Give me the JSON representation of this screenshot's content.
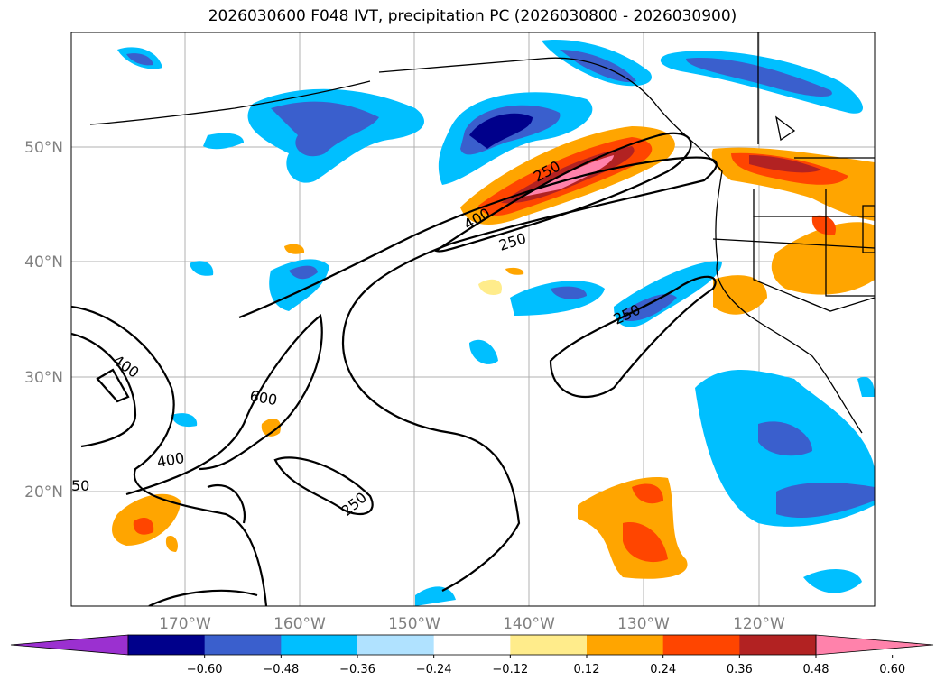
{
  "title": "2026030600 F048 IVT, precipitation PC (2026030800 - 2026030900)",
  "map": {
    "lat_labels": [
      "50°N",
      "40°N",
      "30°N",
      "20°N"
    ],
    "lon_labels": [
      "170°W",
      "160°W",
      "150°W",
      "140°W",
      "130°W",
      "120°W"
    ]
  },
  "contour_labels": [
    "250",
    "400",
    "250",
    "250",
    "400",
    "600",
    "400",
    "250",
    "50"
  ],
  "colorbar": {
    "ticks": [
      "−0.60",
      "−0.48",
      "−0.36",
      "−0.24",
      "−0.12",
      "0.12",
      "0.24",
      "0.36",
      "0.48",
      "0.60"
    ],
    "colors": [
      "#9b30d0",
      "#00008b",
      "#3a5fcd",
      "#00bfff",
      "#b0e2ff",
      "#ffffff",
      "#ffec8b",
      "#ffa500",
      "#ff4500",
      "#b22222",
      "#ff82ab"
    ]
  }
}
